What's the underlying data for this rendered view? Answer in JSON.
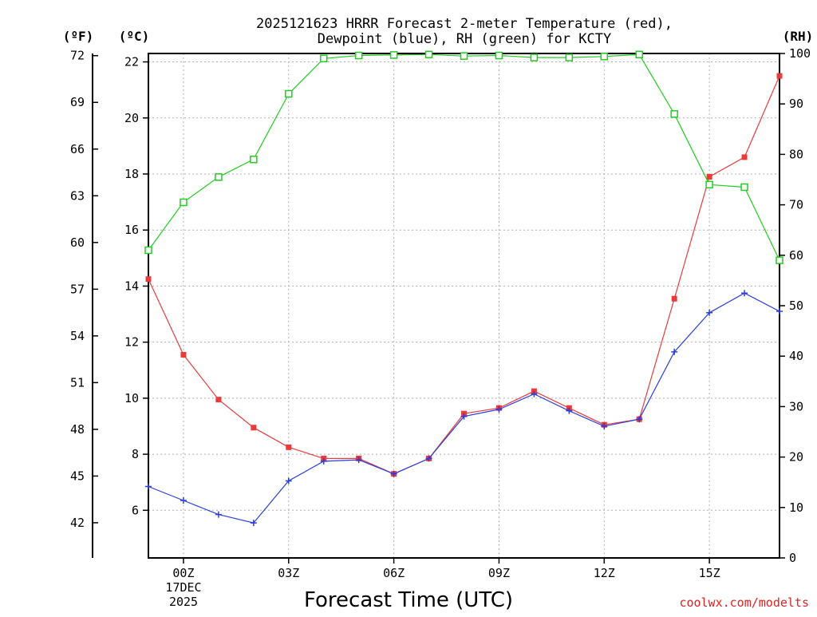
{
  "chart_data": {
    "type": "line",
    "title_line1": "2025121623 HRRR Forecast 2-meter Temperature (red),",
    "title_line2": "Dewpoint (blue), RH (green) for KCTY",
    "xlabel": "Forecast Time (UTC)",
    "watermark": "coolwx.com/modelts",
    "units": {
      "fahrenheit": "(ºF)",
      "celsius": "(ºC)",
      "rh": "(RH)"
    },
    "x_hours": [
      -1,
      0,
      1,
      2,
      3,
      4,
      5,
      6,
      7,
      8,
      9,
      10,
      11,
      12,
      13,
      14,
      15,
      16,
      17
    ],
    "xlim": [
      -1,
      17
    ],
    "x_ticks": [
      {
        "hour": 0,
        "label": "00Z"
      },
      {
        "hour": 3,
        "label": "03Z"
      },
      {
        "hour": 6,
        "label": "06Z"
      },
      {
        "hour": 9,
        "label": "09Z"
      },
      {
        "hour": 12,
        "label": "12Z"
      },
      {
        "hour": 15,
        "label": "15Z"
      }
    ],
    "date_line1": "17DEC",
    "date_line2": "2025",
    "ylim_celsius": [
      4.3,
      22.3
    ],
    "ylim_rh": [
      0,
      100
    ],
    "celsius_ticks": [
      "6",
      "8",
      "10",
      "12",
      "14",
      "16",
      "18",
      "20",
      "22"
    ],
    "fahrenheit_ticks": [
      "42",
      "45",
      "48",
      "51",
      "54",
      "57",
      "60",
      "63",
      "66",
      "69",
      "72"
    ],
    "rh_ticks": [
      "0",
      "10",
      "20",
      "30",
      "40",
      "50",
      "60",
      "70",
      "80",
      "90",
      "100"
    ],
    "series": [
      {
        "name": "Temperature",
        "color": "#e83c3c",
        "unit": "C",
        "marker": "filled-square",
        "values": [
          14.25,
          11.55,
          9.95,
          8.95,
          8.25,
          7.85,
          7.85,
          7.3,
          7.85,
          9.45,
          9.65,
          10.25,
          9.65,
          9.05,
          9.25,
          13.55,
          17.9,
          18.6,
          21.5
        ]
      },
      {
        "name": "Dewpoint",
        "color": "#2a3de0",
        "unit": "C",
        "marker": "plus",
        "values": [
          6.85,
          6.35,
          5.85,
          5.55,
          7.05,
          7.75,
          7.8,
          7.3,
          7.85,
          9.35,
          9.6,
          10.15,
          9.55,
          9.0,
          9.25,
          11.65,
          13.05,
          13.75,
          13.1
        ]
      },
      {
        "name": "RH",
        "color": "#22cc22",
        "unit": "%",
        "marker": "open-square",
        "values": [
          61,
          70.5,
          75.5,
          79,
          92,
          99,
          99.6,
          99.7,
          99.8,
          99.5,
          99.6,
          99.2,
          99.2,
          99.4,
          99.8,
          88,
          74,
          73.5,
          59
        ]
      }
    ]
  }
}
